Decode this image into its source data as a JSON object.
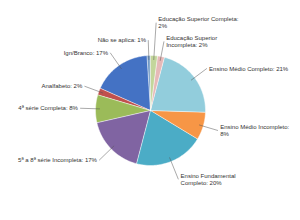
{
  "chart_data": {
    "type": "pie",
    "categories": [
      "Não se aplica: 1%",
      "Ign/Branco: 17%",
      "Analfabeto: 2%",
      "4ª série Completa: 8%",
      "5ª a 8ª série Incompleta: 17%",
      "Ensino Fundamental\nCompleto: 20%",
      "Ensino Médio Incompleto:\n8%",
      "Ensino Médio Completo: 21%",
      "Educação Superior\nIncompleta: 2%",
      "Educação Superior Completa:\n2%"
    ],
    "values": [
      1,
      17,
      2,
      8,
      17,
      20,
      8,
      21,
      2,
      2
    ],
    "colors": [
      "#7099c5",
      "#4472c4",
      "#c0504d",
      "#9bbb59",
      "#8064a2",
      "#4bacc6",
      "#f79646",
      "#92cddc",
      "#e6b9b8",
      "#c3d69b"
    ]
  }
}
